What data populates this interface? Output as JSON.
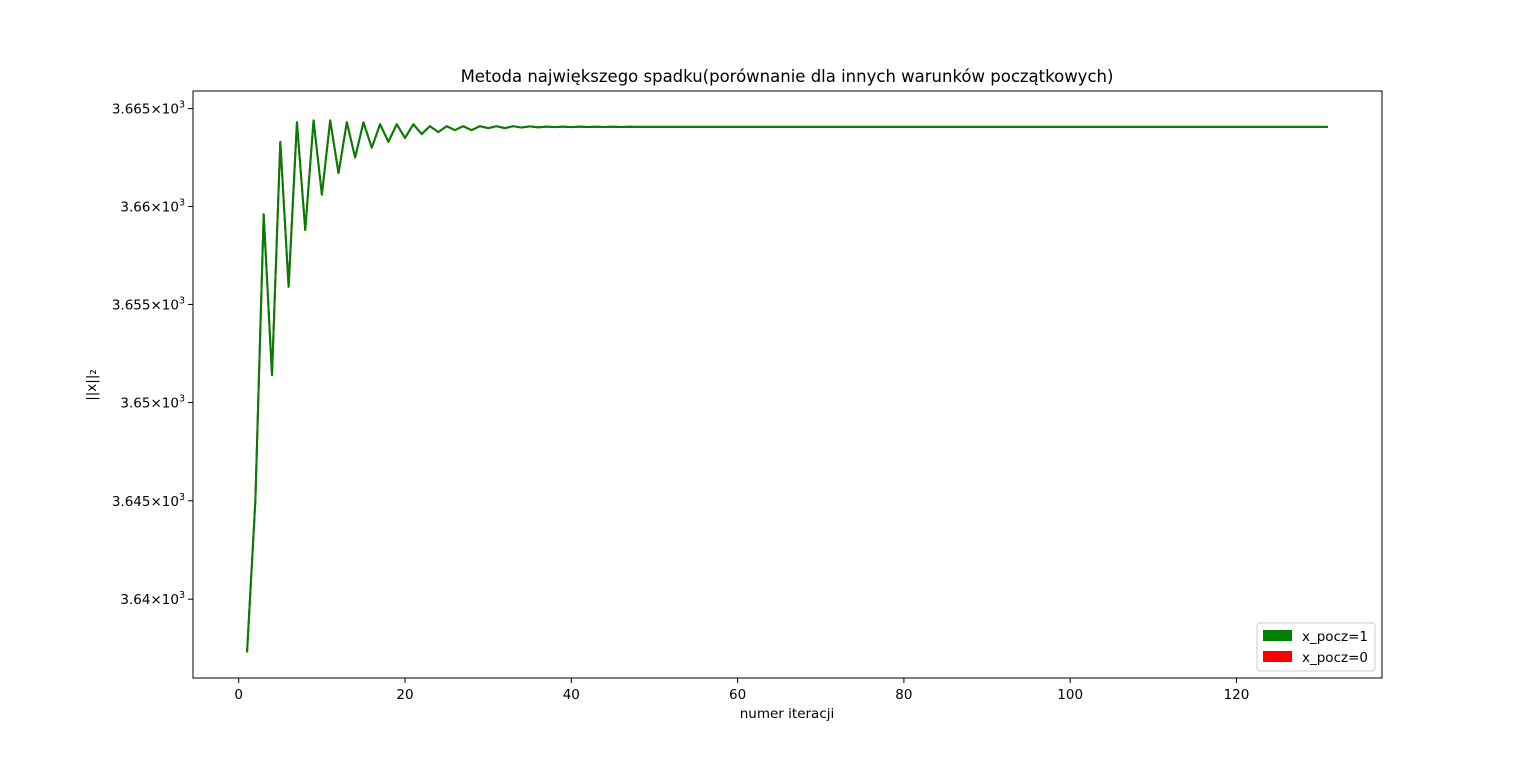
{
  "chart_data": {
    "type": "line",
    "title": "Metoda największego spadku(porównanie dla innych warunków początkowych)",
    "xlabel": "numer iteracji",
    "ylabel": "||x||₂",
    "xlim": [
      -5.5,
      137.5
    ],
    "ylim": [
      3636.0,
      3665.9
    ],
    "y_scale": "log",
    "grid": false,
    "legend_position": "lower right",
    "x_ticks": [
      0,
      20,
      40,
      60,
      80,
      100,
      120
    ],
    "x_tick_labels": [
      "0",
      "20",
      "40",
      "60",
      "80",
      "100",
      "120"
    ],
    "y_ticks": [
      3640,
      3645,
      3650,
      3655,
      3660,
      3665
    ],
    "y_tick_labels": [
      {
        "mantissa": "3.64",
        "exponent": "3"
      },
      {
        "mantissa": "3.645",
        "exponent": "3"
      },
      {
        "mantissa": "3.65",
        "exponent": "3"
      },
      {
        "mantissa": "3.655",
        "exponent": "3"
      },
      {
        "mantissa": "3.66",
        "exponent": "3"
      },
      {
        "mantissa": "3.665",
        "exponent": "3"
      }
    ],
    "y_tick_times": "×10",
    "series": [
      {
        "name": "x_pocz=0",
        "color": "#ff0000",
        "line_color": "#a01010",
        "x_last": 131,
        "values_head": [
          3637.3,
          3645.0,
          3659.6,
          3651.4,
          3663.3,
          3655.9,
          3664.3,
          3658.8,
          3664.4,
          3660.6,
          3664.4,
          3661.7,
          3664.3,
          3662.5,
          3664.3,
          3663.0,
          3664.2,
          3663.3,
          3664.2,
          3663.5,
          3664.2,
          3663.7,
          3664.1,
          3663.8,
          3664.1,
          3663.9,
          3664.1,
          3663.9,
          3664.1,
          3664.0,
          3664.1,
          3664.0,
          3664.1,
          3664.03,
          3664.09,
          3664.04,
          3664.08,
          3664.05,
          3664.08,
          3664.05,
          3664.08,
          3664.06,
          3664.07,
          3664.06,
          3664.07,
          3664.06,
          3664.07
        ],
        "value_final": 3664.065
      },
      {
        "name": "x_pocz=1",
        "color": "#008000",
        "line_color": "#008000",
        "x_last": 131,
        "values_head": [
          3637.3,
          3645.0,
          3659.6,
          3651.4,
          3663.3,
          3655.9,
          3664.3,
          3658.8,
          3664.4,
          3660.6,
          3664.4,
          3661.7,
          3664.3,
          3662.5,
          3664.3,
          3663.0,
          3664.2,
          3663.3,
          3664.2,
          3663.5,
          3664.2,
          3663.7,
          3664.1,
          3663.8,
          3664.1,
          3663.9,
          3664.1,
          3663.9,
          3664.1,
          3664.0,
          3664.1,
          3664.0,
          3664.1,
          3664.03,
          3664.09,
          3664.04,
          3664.08,
          3664.05,
          3664.08,
          3664.05,
          3664.08,
          3664.06,
          3664.07,
          3664.06,
          3664.07,
          3664.06,
          3664.07
        ],
        "value_final": 3664.065
      }
    ],
    "legend": [
      {
        "label": "x_pocz=1",
        "color": "#008000"
      },
      {
        "label": "x_pocz=0",
        "color": "#ff0000"
      }
    ]
  }
}
